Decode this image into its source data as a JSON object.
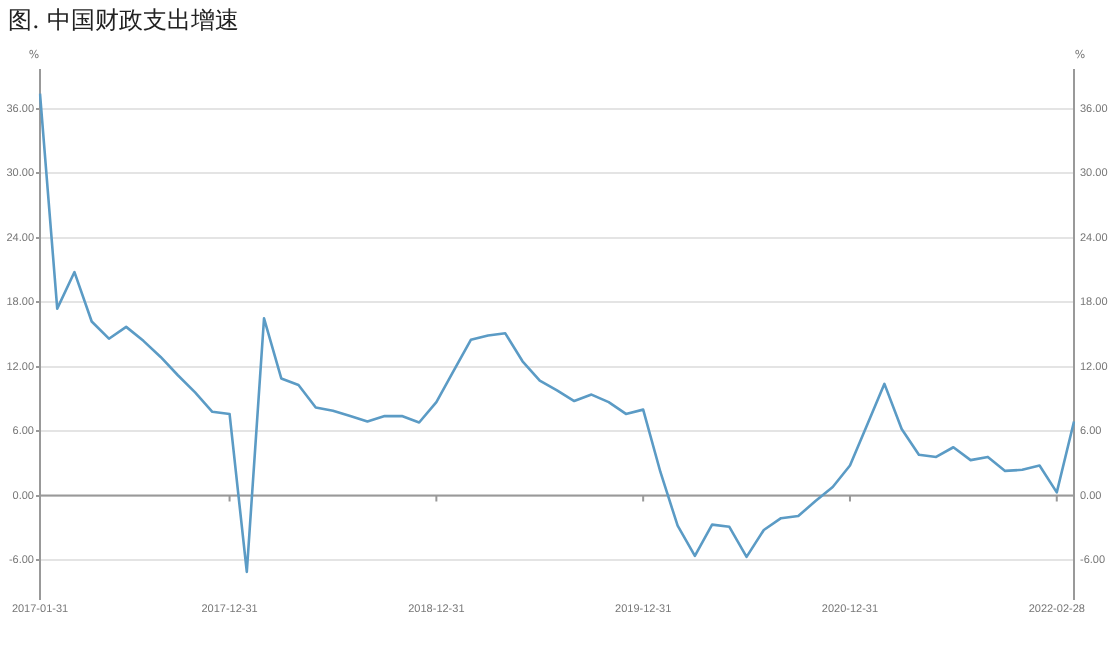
{
  "chart_data": {
    "type": "line",
    "title": "图. 中国财政支出增速",
    "ylabel": "%",
    "y2label": "%",
    "categories": [
      "2017-01-31",
      null,
      null,
      null,
      null,
      null,
      null,
      null,
      null,
      null,
      null,
      "2017-12-31",
      null,
      null,
      null,
      null,
      null,
      null,
      null,
      null,
      null,
      null,
      null,
      "2018-12-31",
      null,
      null,
      null,
      null,
      null,
      null,
      null,
      null,
      null,
      null,
      null,
      "2019-12-31",
      null,
      null,
      null,
      null,
      null,
      null,
      null,
      null,
      null,
      null,
      null,
      "2020-12-31",
      null,
      null,
      null,
      null,
      null,
      null,
      null,
      null,
      null,
      null,
      null,
      "2022-02-28",
      null
    ],
    "series": [
      {
        "color": "#5b9bc5",
        "values": [
          37.4,
          17.4,
          20.8,
          16.2,
          14.6,
          15.7,
          14.4,
          12.9,
          11.2,
          9.6,
          7.8,
          7.6,
          -7.1,
          16.5,
          10.9,
          10.3,
          8.2,
          7.9,
          7.4,
          6.9,
          7.4,
          7.4,
          6.8,
          8.7,
          11.6,
          14.5,
          14.9,
          15.1,
          12.5,
          10.7,
          9.8,
          8.8,
          9.4,
          8.7,
          7.6,
          8.0,
          2.2,
          -2.8,
          -5.6,
          -2.7,
          -2.9,
          -5.7,
          -3.2,
          -2.1,
          -1.9,
          -0.5,
          0.8,
          2.8,
          6.6,
          10.4,
          6.2,
          3.8,
          3.6,
          4.5,
          3.3,
          3.6,
          2.3,
          2.4,
          2.8,
          0.3,
          6.9
        ]
      }
    ],
    "ylim": [
      -9.6,
      39.6
    ],
    "yticks": [
      {
        "value": -6,
        "label": "-6.00"
      },
      {
        "value": 0,
        "label": "0.00"
      },
      {
        "value": 6,
        "label": "6.00"
      },
      {
        "value": 12,
        "label": "12.00"
      },
      {
        "value": 18,
        "label": "18.00"
      },
      {
        "value": 24,
        "label": "24.00"
      },
      {
        "value": 30,
        "label": "30.00"
      },
      {
        "value": 36,
        "label": "36.00"
      }
    ],
    "y2lim": [
      -9.6,
      39.6
    ],
    "y2ticks": [
      {
        "value": -6,
        "label": "-6.00"
      },
      {
        "value": 0,
        "label": "0.00"
      },
      {
        "value": 6,
        "label": "6.00"
      },
      {
        "value": 12,
        "label": "12.00"
      },
      {
        "value": 18,
        "label": "18.00"
      },
      {
        "value": 24,
        "label": "24.00"
      },
      {
        "value": 30,
        "label": "30.00"
      },
      {
        "value": 36,
        "label": "36.00"
      }
    ],
    "ref_lines": [
      {
        "axis": "y",
        "value": 0,
        "color": "#999999"
      }
    ],
    "grid": "y",
    "legend": false,
    "marker": "none",
    "line_style": "solid"
  }
}
